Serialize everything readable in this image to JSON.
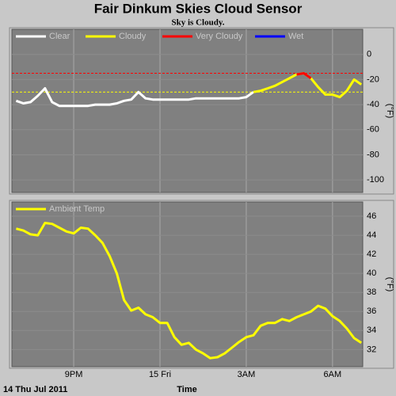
{
  "chart_data": [
    {
      "type": "line",
      "title": "Fair Dinkum Skies Cloud Sensor",
      "subtitle": "Sky is Cloudy.",
      "y_label": "(°F)",
      "xlim": [
        18.85,
        31.05
      ],
      "ylim": [
        -110,
        20
      ],
      "yticks": [
        0,
        -20,
        -40,
        -60,
        -80,
        -100
      ],
      "grid": true,
      "thresholds": [
        {
          "value": -15,
          "color": "#ff0000"
        },
        {
          "value": -30,
          "color": "#ffff00"
        }
      ],
      "x": [
        19,
        19.25,
        19.5,
        19.75,
        20,
        20.25,
        20.5,
        20.75,
        21,
        21.25,
        21.5,
        21.75,
        22,
        22.25,
        22.5,
        22.75,
        23,
        23.25,
        23.5,
        23.75,
        24,
        24.25,
        24.5,
        24.75,
        25,
        25.25,
        25.5,
        25.75,
        26,
        26.25,
        26.5,
        26.75,
        27,
        27.25,
        27.5,
        27.75,
        28,
        28.25,
        28.5,
        28.75,
        29,
        29.25,
        29.5,
        29.75,
        30,
        30.25,
        30.5,
        30.75,
        31
      ],
      "series": [
        {
          "name": "Clear",
          "color": "#ffffff",
          "values": [
            -37,
            -39,
            -38,
            -33,
            -27,
            -38,
            -41,
            -41,
            -41,
            -41,
            -41,
            -40,
            -40,
            -40,
            -39,
            -37,
            -36,
            -30,
            -35,
            -36,
            -36,
            -36,
            -36,
            -36,
            -36,
            -35,
            -35,
            -35,
            -35,
            -35,
            -35,
            -35,
            -34,
            -30,
            null,
            null,
            null,
            null,
            null,
            null,
            null,
            null,
            null,
            null,
            null,
            null,
            null,
            null,
            null
          ]
        },
        {
          "name": "Cloudy",
          "color": "#ffff00",
          "values": [
            null,
            null,
            null,
            null,
            null,
            null,
            null,
            null,
            null,
            null,
            null,
            null,
            null,
            null,
            null,
            null,
            null,
            null,
            null,
            null,
            null,
            null,
            null,
            null,
            null,
            null,
            null,
            null,
            null,
            null,
            null,
            null,
            null,
            -30,
            -29,
            -27,
            -25,
            -22,
            -19,
            -16,
            -15,
            -19,
            -26,
            -32,
            -32,
            -34,
            -29,
            -20,
            -24
          ]
        },
        {
          "name": "Very Cloudy",
          "color": "#ff0000",
          "values": [
            null,
            null,
            null,
            null,
            null,
            null,
            null,
            null,
            null,
            null,
            null,
            null,
            null,
            null,
            null,
            null,
            null,
            null,
            null,
            null,
            null,
            null,
            null,
            null,
            null,
            null,
            null,
            null,
            null,
            null,
            null,
            null,
            null,
            null,
            null,
            null,
            null,
            null,
            null,
            -16,
            -15,
            -19,
            null,
            null,
            null,
            null,
            null,
            null,
            null
          ]
        },
        {
          "name": "Wet",
          "color": "#0000ff",
          "values": [
            null,
            null,
            null,
            null,
            null,
            null,
            null,
            null,
            null,
            null,
            null,
            null,
            null,
            null,
            null,
            null,
            null,
            null,
            null,
            null,
            null,
            null,
            null,
            null,
            null,
            null,
            null,
            null,
            null,
            null,
            null,
            null,
            null,
            null,
            null,
            null,
            null,
            null,
            null,
            null,
            null,
            null,
            null,
            null,
            null,
            null,
            null,
            null,
            null
          ]
        }
      ]
    },
    {
      "type": "line",
      "y_label": "(°F)",
      "x_label": "Time",
      "date_label": "14 Thu Jul 2011",
      "xlim": [
        18.85,
        31.05
      ],
      "ylim": [
        30.2,
        47.5
      ],
      "yticks": [
        46,
        44,
        42,
        40,
        38,
        36,
        34,
        32
      ],
      "grid": true,
      "xticks": [
        {
          "value": 21,
          "label": "9PM"
        },
        {
          "value": 24,
          "label": "15 Fri"
        },
        {
          "value": 27,
          "label": "3AM"
        },
        {
          "value": 30,
          "label": "6AM"
        }
      ],
      "x": [
        19,
        19.25,
        19.5,
        19.75,
        20,
        20.25,
        20.5,
        20.75,
        21,
        21.25,
        21.5,
        21.75,
        22,
        22.25,
        22.5,
        22.75,
        23,
        23.25,
        23.5,
        23.75,
        24,
        24.25,
        24.5,
        24.75,
        25,
        25.25,
        25.5,
        25.75,
        26,
        26.25,
        26.5,
        26.75,
        27,
        27.25,
        27.5,
        27.75,
        28,
        28.25,
        28.5,
        28.75,
        29,
        29.25,
        29.5,
        29.75,
        30,
        30.25,
        30.5,
        30.75,
        31
      ],
      "series": [
        {
          "name": "Ambient Temp",
          "color": "#ffff00",
          "values": [
            44.7,
            44.5,
            44.1,
            44.0,
            45.3,
            45.2,
            44.8,
            44.4,
            44.2,
            44.8,
            44.7,
            44.0,
            43.2,
            41.8,
            40.0,
            37.2,
            36.1,
            36.4,
            35.7,
            35.4,
            34.8,
            34.8,
            33.3,
            32.5,
            32.7,
            32.0,
            31.6,
            31.1,
            31.2,
            31.6,
            32.2,
            32.8,
            33.3,
            33.5,
            34.5,
            34.8,
            34.8,
            35.2,
            35.0,
            35.4,
            35.7,
            36.0,
            36.6,
            36.3,
            35.5,
            35.0,
            34.2,
            33.2,
            32.7
          ]
        }
      ]
    }
  ]
}
